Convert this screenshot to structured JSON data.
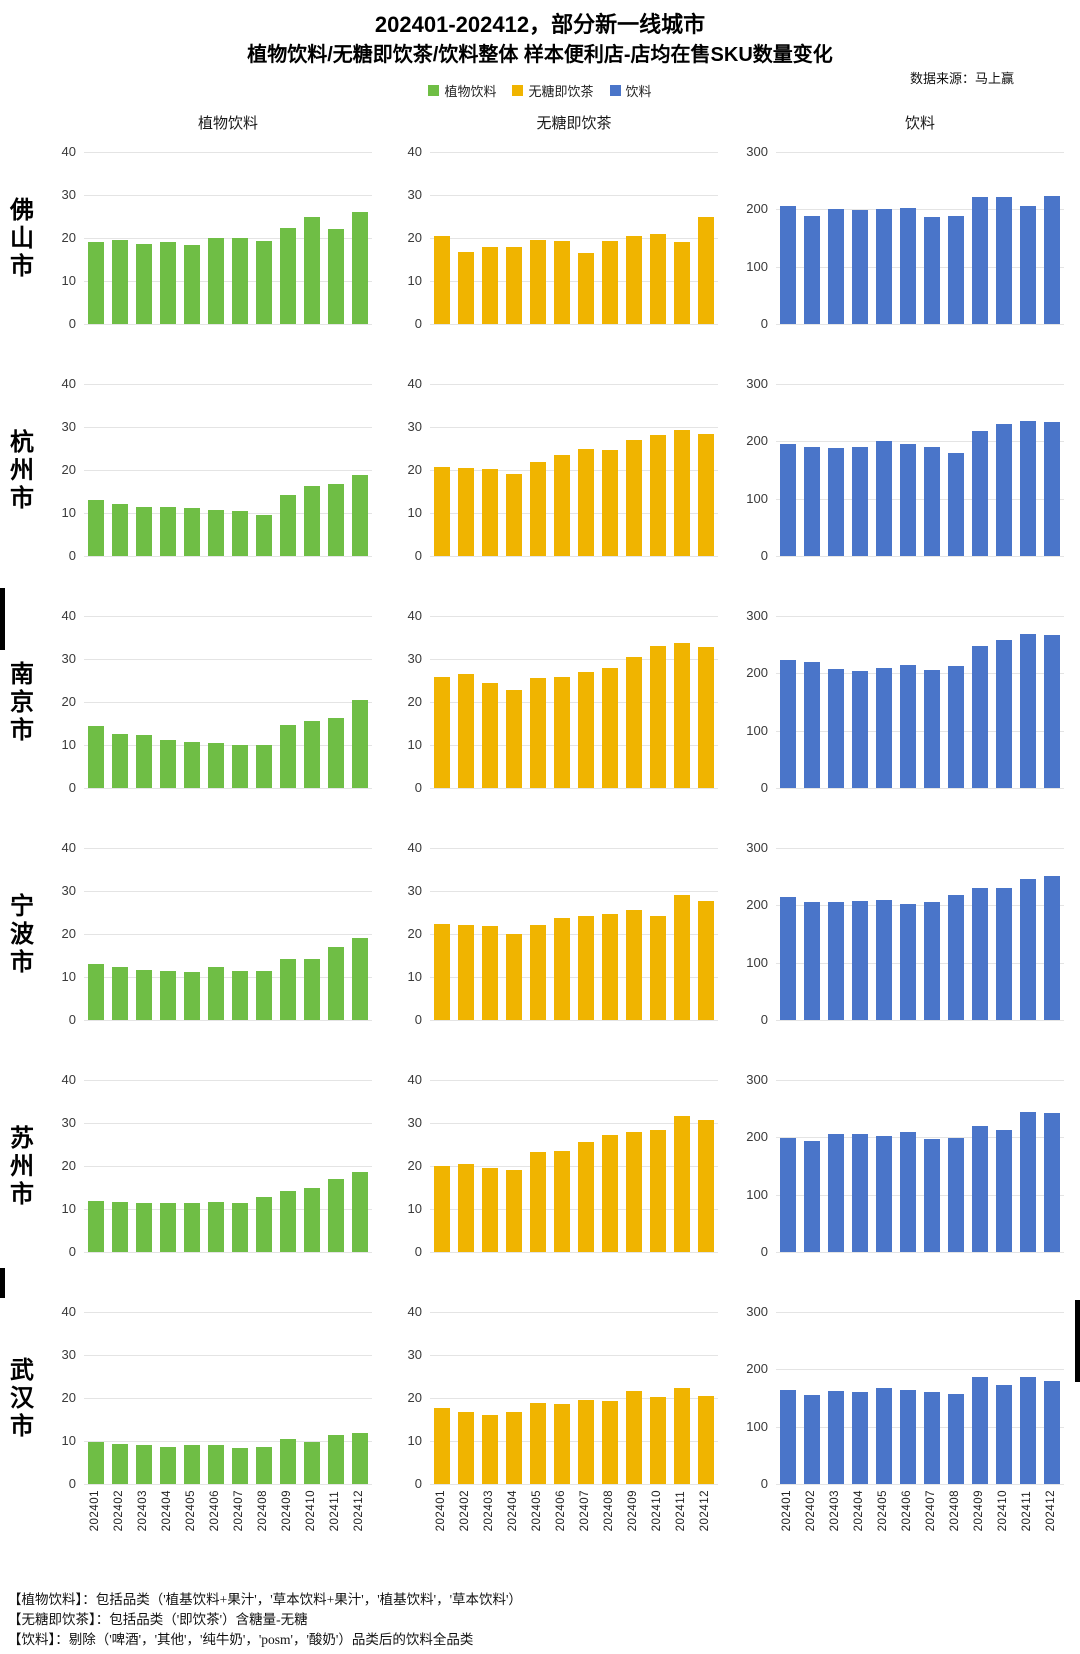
{
  "header": {
    "title_line1": "202401-202412，部分新一线城市",
    "title_line2": "植物饮料/无糖即饮茶/饮料整体 样本便利店-店均在售SKU数量变化",
    "source": "数据来源：马上赢",
    "legend": [
      {
        "label": "植物饮料",
        "color": "#6FBE45"
      },
      {
        "label": "无糖即饮茶",
        "color": "#F0B400"
      },
      {
        "label": "饮料",
        "color": "#4A75C9"
      }
    ]
  },
  "columns": [
    {
      "label": "植物饮料",
      "color": "#6FBE45",
      "ylim": [
        0,
        40
      ],
      "yticks": [
        0,
        10,
        20,
        30,
        40
      ]
    },
    {
      "label": "无糖即饮茶",
      "color": "#F0B400",
      "ylim": [
        0,
        40
      ],
      "yticks": [
        0,
        10,
        20,
        30,
        40
      ]
    },
    {
      "label": "饮料",
      "color": "#4A75C9",
      "ylim": [
        0,
        300
      ],
      "yticks": [
        0,
        100,
        200,
        300
      ]
    }
  ],
  "chart_data": {
    "type": "bar",
    "categories": [
      "202401",
      "202402",
      "202403",
      "202404",
      "202405",
      "202406",
      "202407",
      "202408",
      "202409",
      "202410",
      "202411",
      "202412"
    ],
    "grid": true,
    "legend_position": "top",
    "rows": [
      {
        "city": "佛山市",
        "series": [
          {
            "name": "植物饮料",
            "values": [
              19.1,
              19.5,
              18.7,
              19.0,
              18.3,
              20.1,
              19.9,
              19.2,
              22.4,
              24.8,
              22.2,
              26.0
            ]
          },
          {
            "name": "无糖即饮茶",
            "values": [
              20.4,
              16.8,
              17.9,
              18.0,
              19.5,
              19.4,
              16.5,
              19.2,
              20.4,
              20.9,
              19.1,
              24.8
            ]
          },
          {
            "name": "饮料",
            "values": [
              206,
              189,
              201,
              199,
              200,
              203,
              187,
              188,
              221,
              222,
              206,
              224
            ]
          }
        ]
      },
      {
        "city": "杭州市",
        "series": [
          {
            "name": "植物饮料",
            "values": [
              13.0,
              12.0,
              11.5,
              11.4,
              11.2,
              10.8,
              10.4,
              9.6,
              14.2,
              16.2,
              16.7,
              18.9
            ]
          },
          {
            "name": "无糖即饮茶",
            "values": [
              20.8,
              20.4,
              20.2,
              19.0,
              21.8,
              23.5,
              25.0,
              24.6,
              26.9,
              28.2,
              29.4,
              28.3
            ]
          },
          {
            "name": "饮料",
            "values": [
              196,
              190,
              189,
              190,
              200,
              195,
              190,
              179,
              218,
              231,
              235,
              233
            ]
          }
        ]
      },
      {
        "city": "南京市",
        "series": [
          {
            "name": "植物饮料",
            "values": [
              14.4,
              12.5,
              12.3,
              11.2,
              10.8,
              10.5,
              10.0,
              10.1,
              14.6,
              15.5,
              16.3,
              20.5
            ]
          },
          {
            "name": "无糖即饮茶",
            "values": [
              25.9,
              26.6,
              24.5,
              22.8,
              25.6,
              25.9,
              26.9,
              28.0,
              30.4,
              33.0,
              33.7,
              32.9
            ]
          },
          {
            "name": "饮料",
            "values": [
              223,
              220,
              208,
              204,
              210,
              215,
              205,
              213,
              248,
              258,
              268,
              267
            ]
          }
        ]
      },
      {
        "city": "宁波市",
        "series": [
          {
            "name": "植物饮料",
            "values": [
              13.0,
              12.4,
              11.7,
              11.5,
              11.1,
              12.3,
              11.3,
              11.3,
              14.3,
              14.3,
              17.0,
              19.1
            ]
          },
          {
            "name": "无糖即饮茶",
            "values": [
              22.4,
              22.1,
              21.9,
              20.0,
              22.0,
              23.7,
              24.2,
              24.6,
              25.5,
              24.2,
              29.1,
              27.6
            ]
          },
          {
            "name": "饮料",
            "values": [
              215,
              206,
              205,
              208,
              209,
              203,
              205,
              218,
              230,
              231,
              246,
              252
            ]
          }
        ]
      },
      {
        "city": "苏州市",
        "series": [
          {
            "name": "植物饮料",
            "values": [
              11.9,
              11.6,
              11.3,
              11.5,
              11.3,
              11.6,
              11.4,
              12.8,
              14.3,
              14.9,
              16.9,
              18.7
            ]
          },
          {
            "name": "无糖即饮茶",
            "values": [
              20.1,
              20.5,
              19.6,
              19.0,
              23.3,
              23.5,
              25.7,
              27.1,
              27.9,
              28.4,
              31.6,
              30.8
            ]
          },
          {
            "name": "饮料",
            "values": [
              199,
              194,
              205,
              206,
              202,
              210,
              197,
              198,
              220,
              212,
              245,
              242
            ]
          }
        ]
      },
      {
        "city": "武汉市",
        "series": [
          {
            "name": "植物饮料",
            "values": [
              9.7,
              9.4,
              9.0,
              8.7,
              9.0,
              9.0,
              8.3,
              8.5,
              10.5,
              9.7,
              11.3,
              11.9
            ]
          },
          {
            "name": "无糖即饮茶",
            "values": [
              17.7,
              16.7,
              16.1,
              16.7,
              18.8,
              18.7,
              19.5,
              19.3,
              21.6,
              20.3,
              22.4,
              20.5
            ]
          },
          {
            "name": "饮料",
            "values": [
              164,
              156,
              163,
              161,
              167,
              164,
              161,
              157,
              186,
              172,
              187,
              180
            ]
          }
        ]
      }
    ]
  },
  "footnotes": [
    "【植物饮料】：包括品类（'植基饮料+果汁'，'草本饮料+果汁'，'植基饮料'，'草本饮料'）",
    "【无糖即饮茶】：包括品类（'即饮茶'）含糖量-无糖",
    "【饮料】：剔除（'啤酒'，'其他'，'纯牛奶'，'posm'，'酸奶'）品类后的饮料全品类"
  ]
}
